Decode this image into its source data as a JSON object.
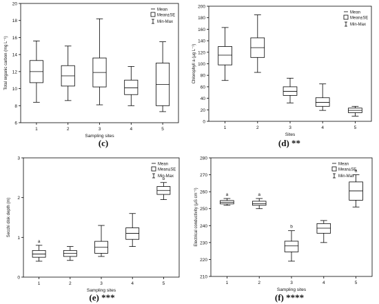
{
  "chart_data": [
    {
      "type": "box",
      "caption": "(c)",
      "ylabel": "Total organic carbon (mg L⁻¹)",
      "xlabel": "Sampling sites",
      "ylim": [
        6,
        20
      ],
      "yticks": [
        6,
        8,
        10,
        12,
        14,
        16,
        18,
        20
      ],
      "categories": [
        "1",
        "2",
        "3",
        "4",
        "5"
      ],
      "legend": [
        "Mean",
        "Mean±SE",
        "Min-Max"
      ],
      "legend_position": "top-right",
      "boxes": [
        {
          "min": 8.4,
          "box_low": 10.7,
          "mean": 12.0,
          "box_high": 13.3,
          "max": 15.6,
          "label": ""
        },
        {
          "min": 8.6,
          "box_low": 10.3,
          "mean": 11.5,
          "box_high": 12.7,
          "max": 15.0,
          "label": ""
        },
        {
          "min": 8.1,
          "box_low": 10.2,
          "mean": 11.9,
          "box_high": 13.6,
          "max": 18.2,
          "label": ""
        },
        {
          "min": 8.0,
          "box_low": 9.3,
          "mean": 10.1,
          "box_high": 11.0,
          "max": 12.6,
          "label": ""
        },
        {
          "min": 7.3,
          "box_low": 8.0,
          "mean": 10.5,
          "box_high": 13.0,
          "max": 15.5,
          "label": ""
        }
      ]
    },
    {
      "type": "box",
      "caption": "(d) **",
      "ylabel": "Chlorophyll a (μg L⁻¹)",
      "xlabel": "Sites",
      "ylim": [
        0,
        200
      ],
      "yticks": [
        0,
        20,
        40,
        60,
        80,
        100,
        120,
        140,
        160,
        180,
        200
      ],
      "categories": [
        "1",
        "2",
        "3",
        "4",
        "5"
      ],
      "legend": [
        "Mean",
        "Mean±SE",
        "Min-Max"
      ],
      "legend_position": "top-right",
      "boxes": [
        {
          "min": 71,
          "box_low": 98,
          "mean": 115,
          "box_high": 130,
          "max": 163,
          "label": ""
        },
        {
          "min": 85,
          "box_low": 111,
          "mean": 128,
          "box_high": 145,
          "max": 185,
          "label": ""
        },
        {
          "min": 32,
          "box_low": 45,
          "mean": 52,
          "box_high": 60,
          "max": 75,
          "label": ""
        },
        {
          "min": 19,
          "box_low": 26,
          "mean": 33,
          "box_high": 41,
          "max": 65,
          "label": ""
        },
        {
          "min": 9,
          "box_low": 15,
          "mean": 19,
          "box_high": 23,
          "max": 26,
          "label": ""
        }
      ]
    },
    {
      "type": "box",
      "caption": "(e) ***",
      "ylabel": "Secchi disk depth (m)",
      "xlabel": "Sampling sites",
      "ylim": [
        0,
        3
      ],
      "yticks": [
        0,
        1,
        2,
        3
      ],
      "categories": [
        "1",
        "2",
        "3",
        "4",
        "5"
      ],
      "legend": [
        "Mean",
        "Mean±SE",
        "Min-Max"
      ],
      "legend_position": "top-right",
      "boxes": [
        {
          "min": 0.4,
          "box_low": 0.5,
          "mean": 0.58,
          "box_high": 0.67,
          "max": 0.8,
          "label": "a"
        },
        {
          "min": 0.42,
          "box_low": 0.52,
          "mean": 0.6,
          "box_high": 0.67,
          "max": 0.77,
          "label": ""
        },
        {
          "min": 0.52,
          "box_low": 0.6,
          "mean": 0.75,
          "box_high": 0.9,
          "max": 1.3,
          "label": ""
        },
        {
          "min": 0.77,
          "box_low": 0.95,
          "mean": 1.1,
          "box_high": 1.24,
          "max": 1.6,
          "label": ""
        },
        {
          "min": 1.95,
          "box_low": 2.08,
          "mean": 2.18,
          "box_high": 2.28,
          "max": 2.38,
          "label": "b"
        }
      ]
    },
    {
      "type": "box",
      "caption": "(f) ****",
      "ylabel": "Electrical conductivity (μS cm⁻¹)",
      "xlabel": "Sampling sites",
      "ylim": [
        210,
        280
      ],
      "yticks": [
        210,
        220,
        230,
        240,
        250,
        260,
        270,
        280
      ],
      "categories": [
        "1",
        "2",
        "3",
        "4",
        "5"
      ],
      "legend": [
        "Mean",
        "Mean±SE",
        "Min-Max"
      ],
      "legend_position": "top-left",
      "boxes": [
        {
          "min": 252,
          "box_low": 252.8,
          "mean": 253.8,
          "box_high": 254.8,
          "max": 256,
          "label": "a"
        },
        {
          "min": 250,
          "box_low": 252,
          "mean": 253,
          "box_high": 254.4,
          "max": 256,
          "label": "a"
        },
        {
          "min": 219,
          "box_low": 224.5,
          "mean": 228,
          "box_high": 230.8,
          "max": 237,
          "label": "b"
        },
        {
          "min": 230,
          "box_low": 235.5,
          "mean": 238.5,
          "box_high": 241.2,
          "max": 243,
          "label": ""
        },
        {
          "min": 251,
          "box_low": 255,
          "mean": 260.5,
          "box_high": 265.8,
          "max": 270,
          "label": "a"
        }
      ]
    }
  ]
}
